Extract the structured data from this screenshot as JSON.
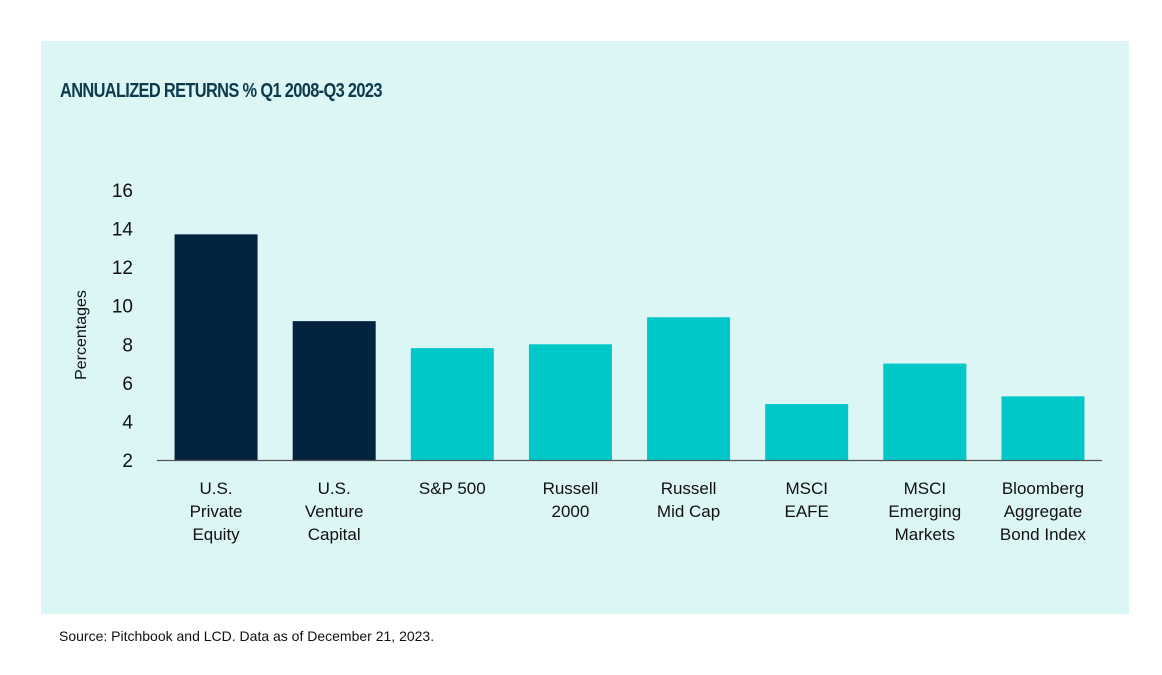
{
  "chart_data": {
    "type": "bar",
    "title": "ANNUALIZED RETURNS % Q1 2008-Q3 2023",
    "ylabel": "Percentages",
    "xlabel": "",
    "ylim": [
      2,
      16
    ],
    "yticks": [
      2,
      4,
      6,
      8,
      10,
      12,
      14,
      16
    ],
    "grid": false,
    "categories": [
      [
        "U.S.",
        "Private",
        "Equity"
      ],
      [
        "U.S.",
        "Venture",
        "Capital"
      ],
      [
        "S&P 500"
      ],
      [
        "Russell",
        "2000"
      ],
      [
        "Russell",
        "Mid Cap"
      ],
      [
        "MSCI",
        "EAFE"
      ],
      [
        "MSCI",
        "Emerging",
        "Markets"
      ],
      [
        "Bloomberg",
        "Aggregate",
        "Bond Index"
      ]
    ],
    "values": [
      13.7,
      9.2,
      7.8,
      8.0,
      9.4,
      4.9,
      7.0,
      5.3
    ],
    "colors": [
      "#03243f",
      "#03243f",
      "#00c8c8",
      "#00c8c8",
      "#00c8c8",
      "#00c8c8",
      "#00c8c8",
      "#00c8c8"
    ]
  },
  "footer": {
    "source": "Source: Pitchbook and LCD. Data as of December 21, 2023."
  },
  "colors": {
    "panel_bg": "#dcf5f5",
    "dark_bar": "#03243f",
    "teal_bar": "#00c8c8",
    "title_color": "#0d3b4e"
  }
}
